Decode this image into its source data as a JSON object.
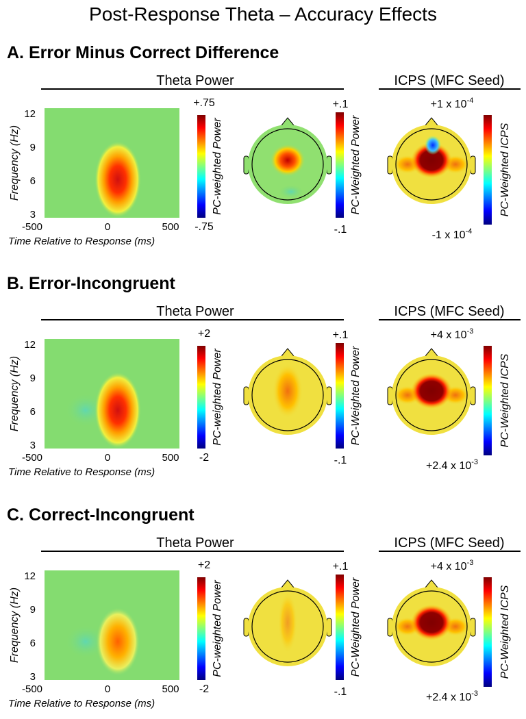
{
  "title": "Post-Response Theta – Accuracy Effects",
  "panels": [
    {
      "heading": "A. Error Minus Correct Difference",
      "theta_header": "Theta Power",
      "icps_header": "ICPS (MFC Seed)",
      "y_label": "Frequency (Hz)",
      "x_label": "Time Relative to Response (ms)",
      "yticks": [
        12,
        9,
        6,
        3
      ],
      "xticks": [
        -500,
        0,
        500
      ],
      "tf_colorbar": {
        "max": "+.75",
        "min": "-.75",
        "label": "PC-weighted Power"
      },
      "topo_colorbar": {
        "max": "+.1",
        "min": "-.1",
        "label": "PC-Weighted Power"
      },
      "icps_colorbar": {
        "max": {
          "text": "+1 x 10",
          "exp": "-4"
        },
        "min": {
          "text": "-1 x 10",
          "exp": "-4"
        },
        "label": "PC-Weighted ICPS"
      }
    },
    {
      "heading": "B. Error-Incongruent",
      "theta_header": "Theta Power",
      "icps_header": "ICPS (MFC Seed)",
      "y_label": "Frequency (Hz)",
      "x_label": "Time Relative to Response (ms)",
      "yticks": [
        12,
        9,
        6,
        3
      ],
      "xticks": [
        -500,
        0,
        500
      ],
      "tf_colorbar": {
        "max": "+2",
        "min": "-2",
        "label": "PC-weighted Power"
      },
      "topo_colorbar": {
        "max": "+.1",
        "min": "-.1",
        "label": "PC-Weighted Power"
      },
      "icps_colorbar": {
        "max": {
          "text": "+4 x 10",
          "exp": "-3"
        },
        "min": {
          "text": "+2.4 x 10",
          "exp": "-3"
        },
        "label": "PC-Weighted ICPS"
      }
    },
    {
      "heading": "C. Correct-Incongruent",
      "theta_header": "Theta Power",
      "icps_header": "ICPS (MFC Seed)",
      "y_label": "Frequency (Hz)",
      "x_label": "Time Relative to Response (ms)",
      "yticks": [
        12,
        9,
        6,
        3
      ],
      "xticks": [
        -500,
        0,
        500
      ],
      "tf_colorbar": {
        "max": "+2",
        "min": "-2",
        "label": "PC-weighted Power"
      },
      "topo_colorbar": {
        "max": "+.1",
        "min": "-.1",
        "label": "PC-Weighted Power"
      },
      "icps_colorbar": {
        "max": {
          "text": "+4 x 10",
          "exp": "-3"
        },
        "min": {
          "text": "+2.4 x 10",
          "exp": "-3"
        },
        "label": "PC-Weighted ICPS"
      }
    }
  ]
}
